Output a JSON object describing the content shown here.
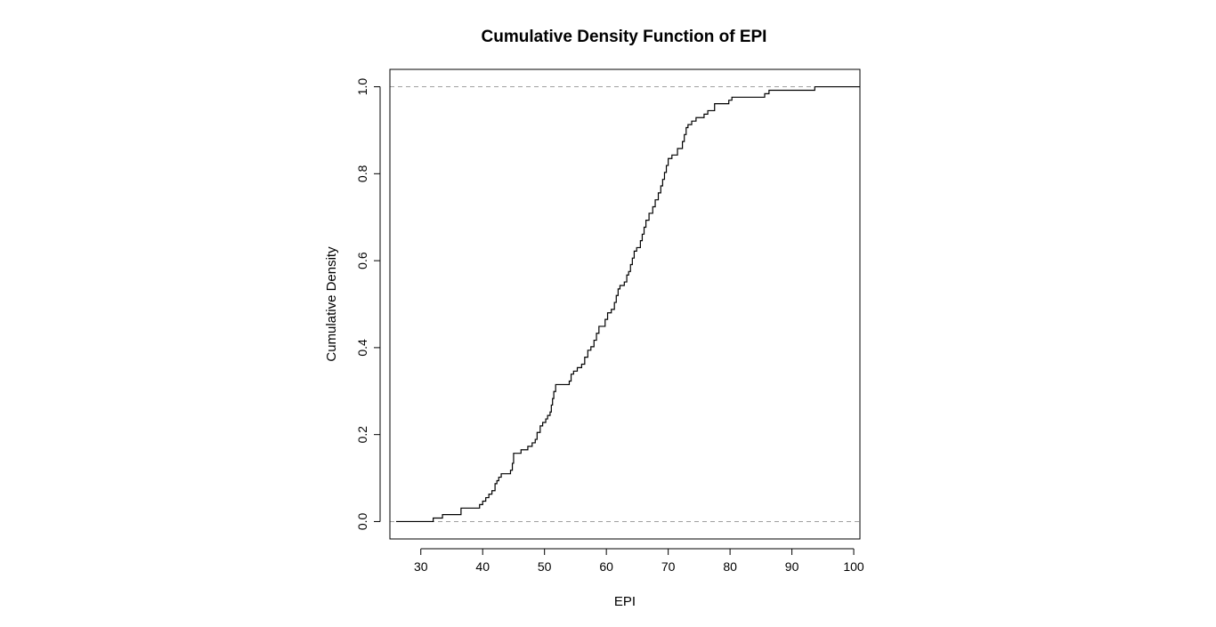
{
  "chart_data": {
    "type": "line",
    "subtype": "step-ecdf",
    "title": "Cumulative Density Function of EPI",
    "xlabel": "EPI",
    "ylabel": "Cumulative Density",
    "xlim": [
      25,
      101
    ],
    "ylim": [
      -0.04,
      1.04
    ],
    "x_ticks": [
      30,
      40,
      50,
      60,
      70,
      80,
      90,
      100
    ],
    "y_ticks": [
      0.0,
      0.2,
      0.4,
      0.6,
      0.8,
      1.0
    ],
    "y_tick_labels": [
      "0.0",
      "0.2",
      "0.4",
      "0.6",
      "0.8",
      "1.0"
    ],
    "x_tick_labels": [
      "30",
      "40",
      "50",
      "60",
      "70",
      "80",
      "90",
      "100"
    ],
    "reference_lines": [
      0.0,
      1.0
    ],
    "grid": false,
    "line_color": "#000000",
    "reference_line_color": "#a0a0a0",
    "steps": [
      [
        32.0,
        0.008
      ],
      [
        33.5,
        0.016
      ],
      [
        36.5,
        0.031
      ],
      [
        39.5,
        0.039
      ],
      [
        40.0,
        0.047
      ],
      [
        40.5,
        0.055
      ],
      [
        41.0,
        0.063
      ],
      [
        41.5,
        0.071
      ],
      [
        42.0,
        0.087
      ],
      [
        42.3,
        0.094
      ],
      [
        42.6,
        0.102
      ],
      [
        43.0,
        0.11
      ],
      [
        44.5,
        0.118
      ],
      [
        44.8,
        0.134
      ],
      [
        45.0,
        0.157
      ],
      [
        46.2,
        0.165
      ],
      [
        47.3,
        0.173
      ],
      [
        48.0,
        0.181
      ],
      [
        48.5,
        0.189
      ],
      [
        48.8,
        0.205
      ],
      [
        49.3,
        0.22
      ],
      [
        49.7,
        0.228
      ],
      [
        50.2,
        0.236
      ],
      [
        50.5,
        0.244
      ],
      [
        50.9,
        0.252
      ],
      [
        51.1,
        0.268
      ],
      [
        51.3,
        0.283
      ],
      [
        51.5,
        0.299
      ],
      [
        51.8,
        0.315
      ],
      [
        54.0,
        0.323
      ],
      [
        54.3,
        0.339
      ],
      [
        54.7,
        0.346
      ],
      [
        55.3,
        0.354
      ],
      [
        56.0,
        0.362
      ],
      [
        56.5,
        0.378
      ],
      [
        57.0,
        0.394
      ],
      [
        57.5,
        0.402
      ],
      [
        58.0,
        0.417
      ],
      [
        58.4,
        0.433
      ],
      [
        58.8,
        0.449
      ],
      [
        59.8,
        0.465
      ],
      [
        60.2,
        0.48
      ],
      [
        60.8,
        0.488
      ],
      [
        61.3,
        0.504
      ],
      [
        61.6,
        0.52
      ],
      [
        61.9,
        0.535
      ],
      [
        62.2,
        0.543
      ],
      [
        62.9,
        0.551
      ],
      [
        63.3,
        0.567
      ],
      [
        63.6,
        0.575
      ],
      [
        63.9,
        0.591
      ],
      [
        64.2,
        0.606
      ],
      [
        64.5,
        0.622
      ],
      [
        64.9,
        0.63
      ],
      [
        65.5,
        0.646
      ],
      [
        65.8,
        0.661
      ],
      [
        66.1,
        0.677
      ],
      [
        66.4,
        0.693
      ],
      [
        66.9,
        0.709
      ],
      [
        67.5,
        0.724
      ],
      [
        67.9,
        0.74
      ],
      [
        68.4,
        0.756
      ],
      [
        68.8,
        0.772
      ],
      [
        69.1,
        0.787
      ],
      [
        69.4,
        0.803
      ],
      [
        69.7,
        0.819
      ],
      [
        70.0,
        0.835
      ],
      [
        70.6,
        0.843
      ],
      [
        71.5,
        0.858
      ],
      [
        72.3,
        0.874
      ],
      [
        72.6,
        0.89
      ],
      [
        72.9,
        0.906
      ],
      [
        73.2,
        0.913
      ],
      [
        73.8,
        0.921
      ],
      [
        74.5,
        0.929
      ],
      [
        75.8,
        0.937
      ],
      [
        76.4,
        0.945
      ],
      [
        77.5,
        0.961
      ],
      [
        79.8,
        0.969
      ],
      [
        80.3,
        0.976
      ],
      [
        85.6,
        0.984
      ],
      [
        86.3,
        0.992
      ],
      [
        93.7,
        1.0
      ]
    ],
    "step_start_x": 26.0,
    "step_end_x": 101.0
  }
}
